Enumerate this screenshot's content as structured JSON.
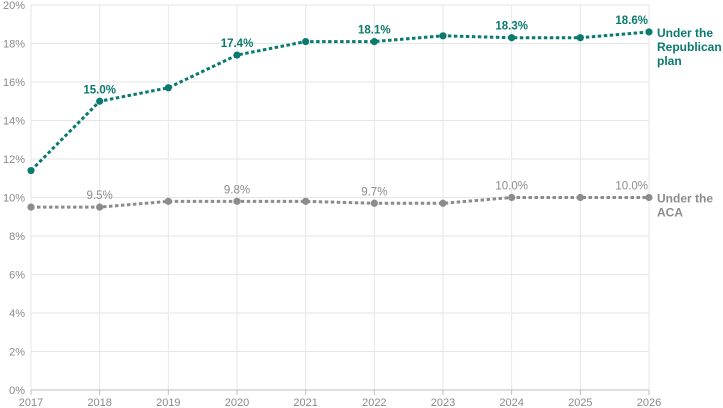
{
  "chart_data": {
    "type": "line",
    "title": "",
    "xlabel": "",
    "ylabel": "",
    "x": [
      "2017",
      "2018",
      "2019",
      "2020",
      "2021",
      "2022",
      "2023",
      "2024",
      "2025",
      "2026"
    ],
    "y_ticks": [
      "0%",
      "2%",
      "4%",
      "6%",
      "8%",
      "10%",
      "12%",
      "14%",
      "16%",
      "18%",
      "20%"
    ],
    "ylim": [
      0,
      20
    ],
    "grid": true,
    "series": [
      {
        "name_lines": [
          "Under the",
          "Republican",
          "plan"
        ],
        "color": "#0b7a6e",
        "values": [
          11.4,
          15.0,
          15.7,
          17.4,
          18.1,
          18.1,
          18.4,
          18.3,
          18.3,
          18.6
        ],
        "labels": [
          {
            "index": 1,
            "text": "15.0%"
          },
          {
            "index": 3,
            "text": "17.4%"
          },
          {
            "index": 5,
            "text": "18.1%"
          },
          {
            "index": 7,
            "text": "18.3%"
          },
          {
            "index": 9,
            "text": "18.6%"
          }
        ]
      },
      {
        "name_lines": [
          "Under the",
          "ACA"
        ],
        "color": "#8c8c8c",
        "values": [
          9.5,
          9.5,
          9.8,
          9.8,
          9.8,
          9.7,
          9.7,
          10.0,
          10.0,
          10.0
        ],
        "labels": [
          {
            "index": 1,
            "text": "9.5%"
          },
          {
            "index": 3,
            "text": "9.8%"
          },
          {
            "index": 5,
            "text": "9.7%"
          },
          {
            "index": 7,
            "text": "10.0%"
          },
          {
            "index": 9,
            "text": "10.0%"
          }
        ]
      }
    ]
  }
}
